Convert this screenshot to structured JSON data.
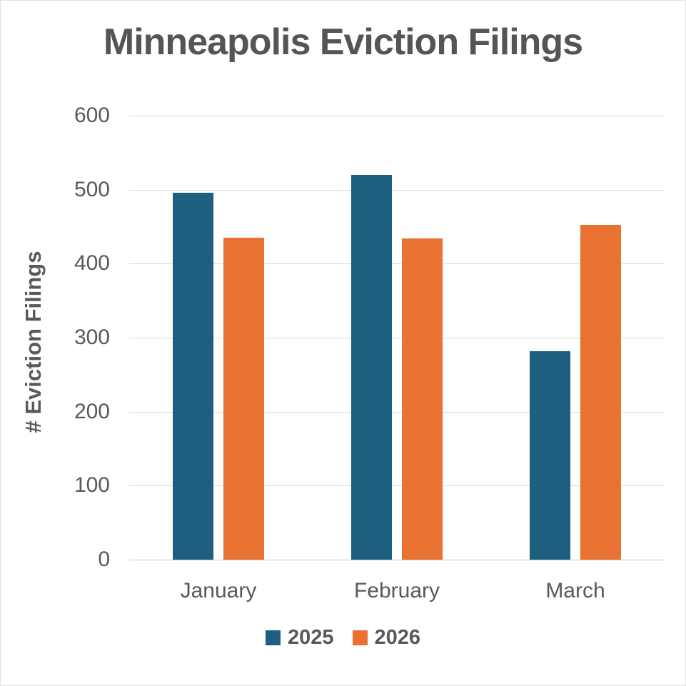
{
  "chart_data": {
    "type": "bar",
    "title": "Minneapolis Eviction Filings",
    "ylabel": "# Eviction Filings",
    "xlabel": "",
    "categories": [
      "January",
      "February",
      "March"
    ],
    "series": [
      {
        "name": "2025",
        "color": "#1E5F80",
        "values": [
          496,
          520,
          282
        ]
      },
      {
        "name": "2026",
        "color": "#E97132",
        "values": [
          435,
          434,
          452
        ]
      }
    ],
    "ylim": [
      0,
      600
    ],
    "yticks": [
      0,
      100,
      200,
      300,
      400,
      500,
      600
    ],
    "grid": true,
    "legend_position": "bottom"
  },
  "colors": {
    "grid": "#DADADA",
    "axis_line": "#C9C9C9",
    "text": "#595959",
    "title_text": "#555555",
    "background": "#FFFFFF"
  }
}
